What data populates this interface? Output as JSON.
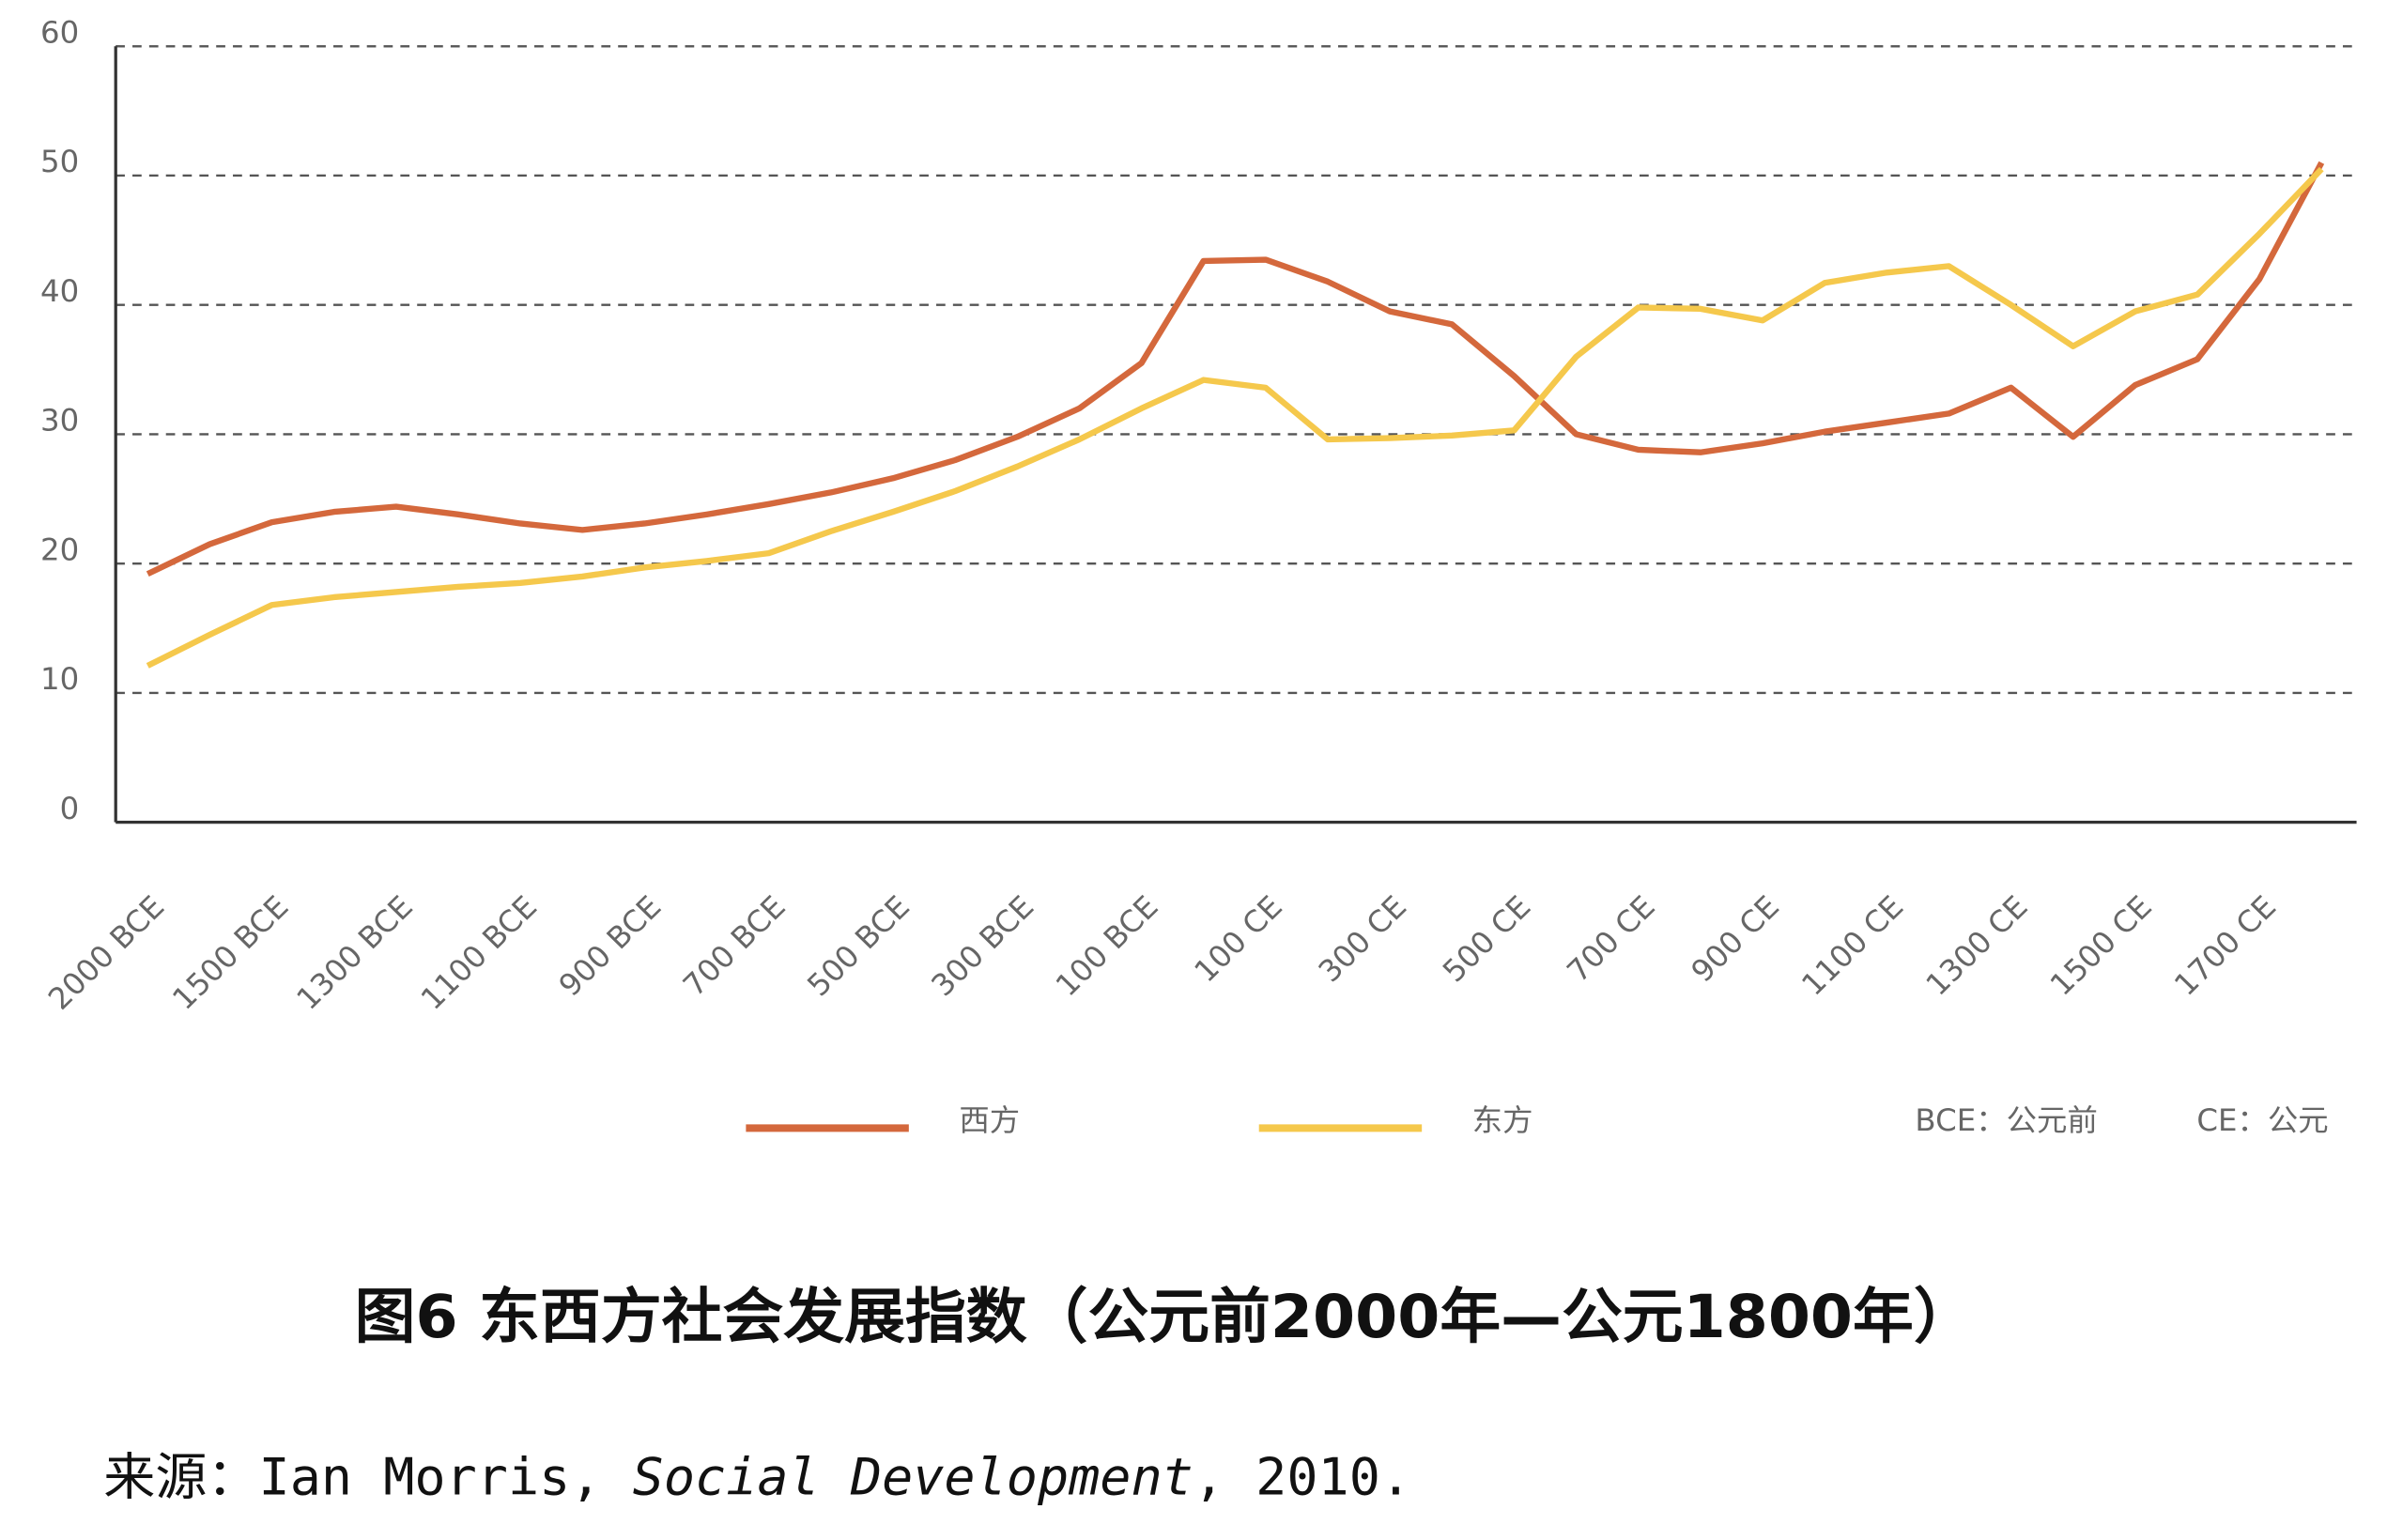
{
  "chart_data": {
    "type": "line",
    "title": "图6 东西方社会发展指数（公元前2000年—公元1800年）",
    "categories": [
      "2000 BCE",
      null,
      "1500 BCE",
      null,
      "1300 BCE",
      null,
      "1100 BCE",
      null,
      "900 BCE",
      null,
      "700 BCE",
      null,
      "500 BCE",
      null,
      "300 BCE",
      null,
      "100 BCE",
      null,
      "100 CE",
      null,
      "300 CE",
      null,
      "500 CE",
      null,
      "700 CE",
      null,
      "900 CE",
      null,
      "1100 CE",
      null,
      "1300 CE",
      null,
      "1500 CE",
      null,
      "1700 CE",
      null
    ],
    "series": [
      {
        "name": "西方",
        "color": "#d4683c",
        "values": [
          19.2,
          21.5,
          23.2,
          24.0,
          24.4,
          23.8,
          23.1,
          22.6,
          23.1,
          23.8,
          24.6,
          25.5,
          26.6,
          28.0,
          29.8,
          32.0,
          35.5,
          43.4,
          43.5,
          41.8,
          39.5,
          38.5,
          34.5,
          30.0,
          28.8,
          28.6,
          29.3,
          30.2,
          30.9,
          31.6,
          33.6,
          29.8,
          33.8,
          35.8,
          42.0,
          51.0
        ]
      },
      {
        "name": "东方",
        "color": "#f5c84c",
        "values": [
          12.1,
          14.5,
          16.8,
          17.4,
          17.8,
          18.2,
          18.5,
          19.0,
          19.7,
          20.2,
          20.8,
          22.5,
          24.0,
          25.6,
          27.5,
          29.6,
          32.0,
          34.2,
          33.6,
          29.6,
          29.7,
          29.9,
          30.3,
          36.0,
          39.8,
          39.7,
          38.8,
          41.7,
          42.5,
          43.0,
          40.0,
          36.8,
          39.5,
          40.8,
          45.5,
          50.5
        ]
      }
    ],
    "ylim": [
      0,
      60
    ],
    "yticks": [
      0,
      10,
      20,
      30,
      40,
      50,
      60
    ],
    "grid": true,
    "notes": [
      "BCE：公元前",
      "CE：公元"
    ],
    "source": {
      "prefix": "来源：Ian Morris, ",
      "work": "Social Development",
      "suffix": ", 2010."
    }
  }
}
